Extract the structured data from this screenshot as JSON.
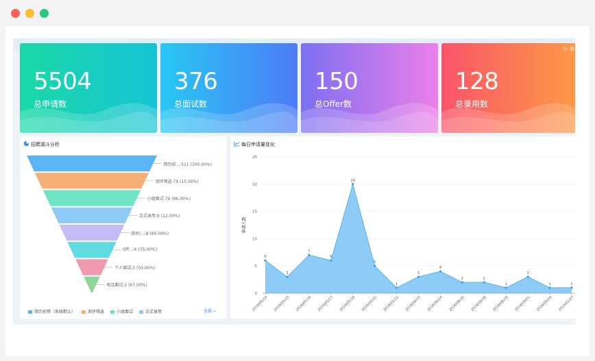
{
  "window": {
    "controls": [
      "close",
      "minimize",
      "maximize"
    ]
  },
  "cards": [
    {
      "value": "5504",
      "label": "总申请数",
      "icon": "wave"
    },
    {
      "value": "376",
      "label": "总面试数",
      "icon": "wave"
    },
    {
      "value": "150",
      "label": "总Offer数",
      "icon": "wave"
    },
    {
      "value": "128",
      "label": "总录用数",
      "icon": "wave"
    }
  ],
  "card_tools": {
    "icons": [
      "refresh-icon",
      "settings-icon"
    ]
  },
  "funnel_panel": {
    "title": "招聘漏斗分析",
    "icon": "pie-chart-icon",
    "stages": [
      {
        "label": "简历初...:511 (100.00%)",
        "color": "#5bb4f5"
      },
      {
        "label": "测评筛选:79 (15.00%)",
        "color": "#f5ae74"
      },
      {
        "label": "小组面试:76 (96.00%)",
        "color": "#6fe3c6"
      },
      {
        "label": "正式录用:9 (12.00%)",
        "color": "#8fc9f6"
      },
      {
        "label": "测评/...:8 (89.00%)",
        "color": "#c3bcf5"
      },
      {
        "label": "Off...:6 (75.00%)",
        "color": "#5fdbe2"
      },
      {
        "label": "个人面试:3 (50.00%)",
        "color": "#ef98ae"
      },
      {
        "label": "电话面试:2 (67.00%)",
        "color": "#8fd59a"
      }
    ],
    "legend": [
      {
        "label": "简历初筛（系统默认）",
        "color": "#5bb4f5"
      },
      {
        "label": "测评筛选",
        "color": "#f5ae74"
      },
      {
        "label": "小组面试",
        "color": "#6fe3c6"
      },
      {
        "label": "正式录用",
        "color": "#8fc9f6"
      }
    ],
    "more_link": "全部"
  },
  "line_panel": {
    "title": "每日申请量变化",
    "icon": "line-chart-icon"
  },
  "chart_data": {
    "type": "area",
    "title": "每日申请量变化",
    "xlabel": "",
    "ylabel": "申请人数",
    "ylim": [
      0,
      25
    ],
    "yticks": [
      0,
      5,
      10,
      15,
      20,
      25
    ],
    "x": [
      "2018/05/14",
      "2018/05/15",
      "2018/05/16",
      "2018/05/17",
      "2018/05/18",
      "2018/05/21",
      "2018/05/22",
      "2018/06/15",
      "2018/06/24",
      "2018/08/25",
      "2018/08/28",
      "2018/08/29",
      "2018/09/01",
      "2018/09/04",
      "2019/01/07"
    ],
    "values": [
      6,
      3,
      7,
      6,
      20,
      5,
      1,
      3,
      4,
      2,
      2,
      1,
      3,
      1,
      1
    ],
    "colors": {
      "fill": "#86c9f7",
      "line": "#5fb2ee",
      "point": "#4aa6ea"
    },
    "grid": true
  }
}
